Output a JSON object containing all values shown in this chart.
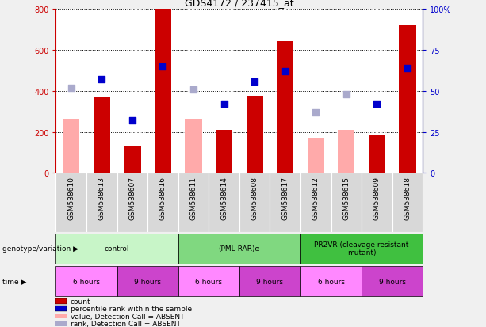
{
  "title": "GDS4172 / 237415_at",
  "samples": [
    "GSM538610",
    "GSM538613",
    "GSM538607",
    "GSM538616",
    "GSM538611",
    "GSM538614",
    "GSM538608",
    "GSM538617",
    "GSM538612",
    "GSM538615",
    "GSM538609",
    "GSM538618"
  ],
  "count_values": [
    null,
    370,
    130,
    800,
    null,
    210,
    375,
    645,
    null,
    null,
    185,
    720
  ],
  "count_absent_values": [
    265,
    null,
    null,
    null,
    265,
    null,
    null,
    null,
    170,
    210,
    null,
    null
  ],
  "percentile_values_pct": [
    null,
    57,
    32,
    65,
    null,
    42,
    56,
    62,
    null,
    null,
    42,
    64
  ],
  "percentile_absent_values_pct": [
    52,
    null,
    null,
    null,
    51,
    null,
    null,
    null,
    37,
    48,
    null,
    null
  ],
  "ylim_left": [
    0,
    800
  ],
  "ylim_right": [
    0,
    100
  ],
  "yticks_left": [
    0,
    200,
    400,
    600,
    800
  ],
  "yticks_right": [
    0,
    25,
    50,
    75,
    100
  ],
  "ytick_labels_right": [
    "0",
    "25",
    "50",
    "75",
    "100%"
  ],
  "genotype_groups": [
    {
      "label": "control",
      "start": 0,
      "end": 4,
      "color": "#c8f5c8"
    },
    {
      "label": "(PML-RAR)α",
      "start": 4,
      "end": 8,
      "color": "#80d880"
    },
    {
      "label": "PR2VR (cleavage resistant\nmutant)",
      "start": 8,
      "end": 12,
      "color": "#40c040"
    }
  ],
  "time_groups": [
    {
      "label": "6 hours",
      "start": 0,
      "end": 2,
      "color": "#ff88ff"
    },
    {
      "label": "9 hours",
      "start": 2,
      "end": 4,
      "color": "#cc44cc"
    },
    {
      "label": "6 hours",
      "start": 4,
      "end": 6,
      "color": "#ff88ff"
    },
    {
      "label": "9 hours",
      "start": 6,
      "end": 8,
      "color": "#cc44cc"
    },
    {
      "label": "6 hours",
      "start": 8,
      "end": 10,
      "color": "#ff88ff"
    },
    {
      "label": "9 hours",
      "start": 10,
      "end": 12,
      "color": "#cc44cc"
    }
  ],
  "count_color": "#cc0000",
  "count_absent_color": "#ffaaaa",
  "percentile_color": "#0000cc",
  "percentile_absent_color": "#aaaacc",
  "bg_plot": "#ffffff",
  "bg_sample": "#d8d8d8",
  "bg_fig": "#f0f0f0",
  "legend_items": [
    {
      "label": "count",
      "color": "#cc0000",
      "marker": "s"
    },
    {
      "label": "percentile rank within the sample",
      "color": "#0000cc",
      "marker": "s"
    },
    {
      "label": "value, Detection Call = ABSENT",
      "color": "#ffaaaa",
      "marker": "s"
    },
    {
      "label": "rank, Detection Call = ABSENT",
      "color": "#aaaacc",
      "marker": "s"
    }
  ]
}
